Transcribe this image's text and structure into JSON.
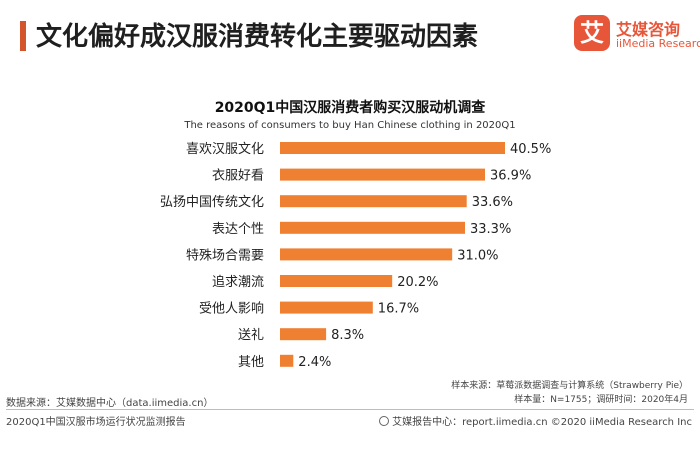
{
  "header": {
    "title": "文化偏好成汉服消费转化主要驱动因素",
    "accent_color": "#d4552b"
  },
  "logo": {
    "mark": "艾",
    "name": "艾媒咨询",
    "sub": "iiMedia Research",
    "color": "#e8563a"
  },
  "chart_data": {
    "type": "bar",
    "orientation": "horizontal",
    "title": "2020Q1中国汉服消费者购买汉服动机调查",
    "subtitle": "The reasons of consumers to buy Han Chinese clothing  in 2020Q1",
    "categories": [
      "喜欢汉服文化",
      "衣服好看",
      "弘扬中国传统文化",
      "表达个性",
      "特殊场合需要",
      "追求潮流",
      "受他人影响",
      "送礼",
      "其他"
    ],
    "values": [
      40.5,
      36.9,
      33.6,
      33.3,
      31.0,
      20.2,
      16.7,
      8.3,
      2.4
    ],
    "value_labels": [
      "40.5%",
      "36.9%",
      "33.6%",
      "33.3%",
      "31.0%",
      "20.2%",
      "16.7%",
      "8.3%",
      "2.4%"
    ],
    "bar_color": "#ef7f31",
    "xlim": [
      0,
      45
    ],
    "grid": false,
    "legend": "none"
  },
  "notes": {
    "sample_source": "样本来源：草莓派数据调查与计算系统（Strawberry Pie）",
    "sample_size": "样本量：N=1755；调研时间：2020年4月",
    "data_source": "数据来源：艾媒数据中心（data.iimedia.cn）"
  },
  "footer": {
    "report": "2020Q1中国汉服市场运行状况监测报告",
    "site": "艾媒报告中心：report.iimedia.cn  ©2020  iiMedia Research  Inc"
  }
}
